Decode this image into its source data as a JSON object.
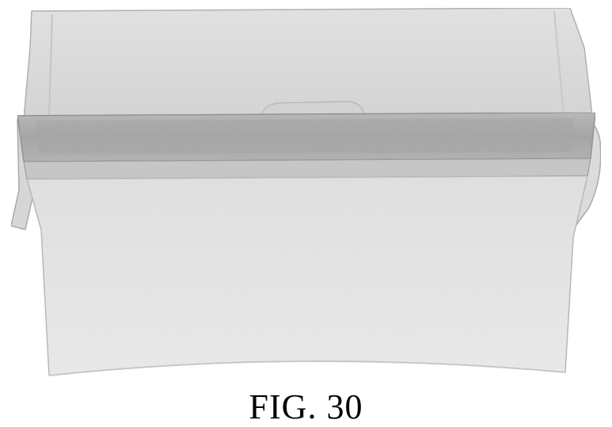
{
  "figure": {
    "caption": "FIG. 30",
    "subject": "container-with-lid-illustration",
    "colors": {
      "body_fill": "#e6e6e6",
      "body_shade": "#d4d4d4",
      "lid_fill": "#dcdcdc",
      "rim_band": "#a9a9a9",
      "rim_dark": "#8f8f8f",
      "outline": "#9a9a9a"
    }
  }
}
